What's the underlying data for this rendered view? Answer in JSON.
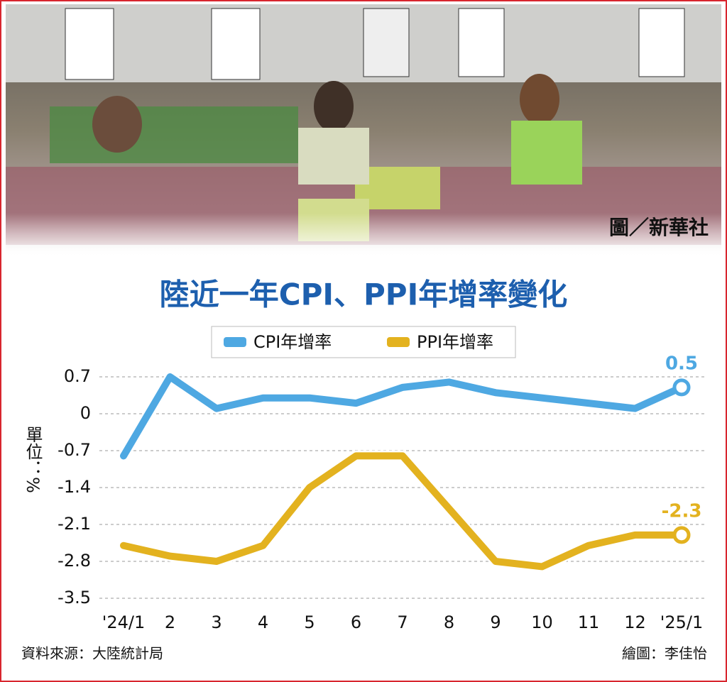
{
  "chart_data": {
    "type": "line",
    "title": "陸近一年CPI、PPI年增率變化",
    "photo_credit": "圖／新華社",
    "y_label": "單位：%",
    "source": "資料來源：大陸統計局",
    "credit": "繪圖：李佳怡",
    "categories": [
      "'24/1",
      "2",
      "3",
      "4",
      "5",
      "6",
      "7",
      "8",
      "9",
      "10",
      "11",
      "12",
      "'25/1"
    ],
    "series": [
      {
        "name": "CPI年增率",
        "color": "#4ea8e2",
        "values": [
          -0.8,
          0.7,
          0.1,
          0.3,
          0.3,
          0.2,
          0.5,
          0.6,
          0.4,
          0.3,
          0.2,
          0.1,
          0.5
        ]
      },
      {
        "name": "PPI年增率",
        "color": "#e3b21f",
        "values": [
          -2.5,
          -2.7,
          -2.8,
          -2.5,
          -1.4,
          -0.8,
          -0.8,
          -1.8,
          -2.8,
          -2.9,
          -2.5,
          -2.3,
          -2.3
        ]
      }
    ],
    "ylim": [
      -3.5,
      1.05
    ],
    "yticks": [
      0.7,
      0,
      -0.7,
      -1.4,
      -2.1,
      -2.8,
      -3.5
    ],
    "grid": true
  }
}
